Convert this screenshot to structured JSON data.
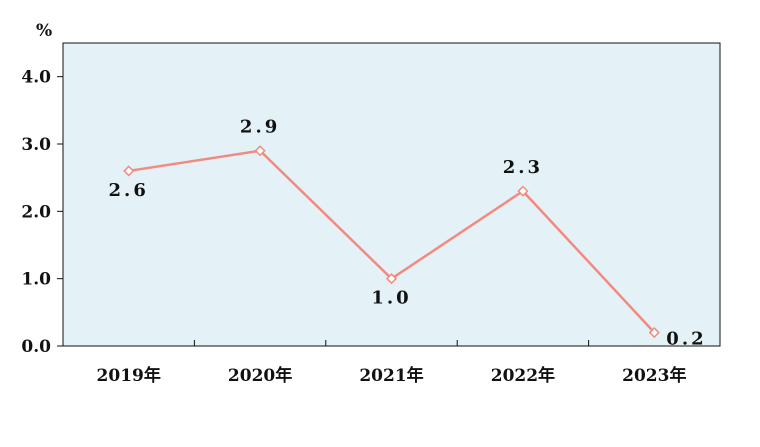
{
  "chart_data": {
    "type": "line",
    "y_unit": "%",
    "categories": [
      "2019年",
      "2020年",
      "2021年",
      "2022年",
      "2023年"
    ],
    "values": [
      2.6,
      2.9,
      1.0,
      2.3,
      0.2
    ],
    "data_labels": [
      "2.6",
      "2.9",
      "1.0",
      "2.3",
      "0.2"
    ],
    "y_ticks": [
      "0.0",
      "1.0",
      "2.0",
      "3.0",
      "4.0"
    ],
    "ylim": [
      0,
      4.5
    ],
    "grid": false,
    "colors": {
      "line": "#f28a80",
      "plot_background": "#e4f1f6",
      "axis": "#111111"
    }
  }
}
